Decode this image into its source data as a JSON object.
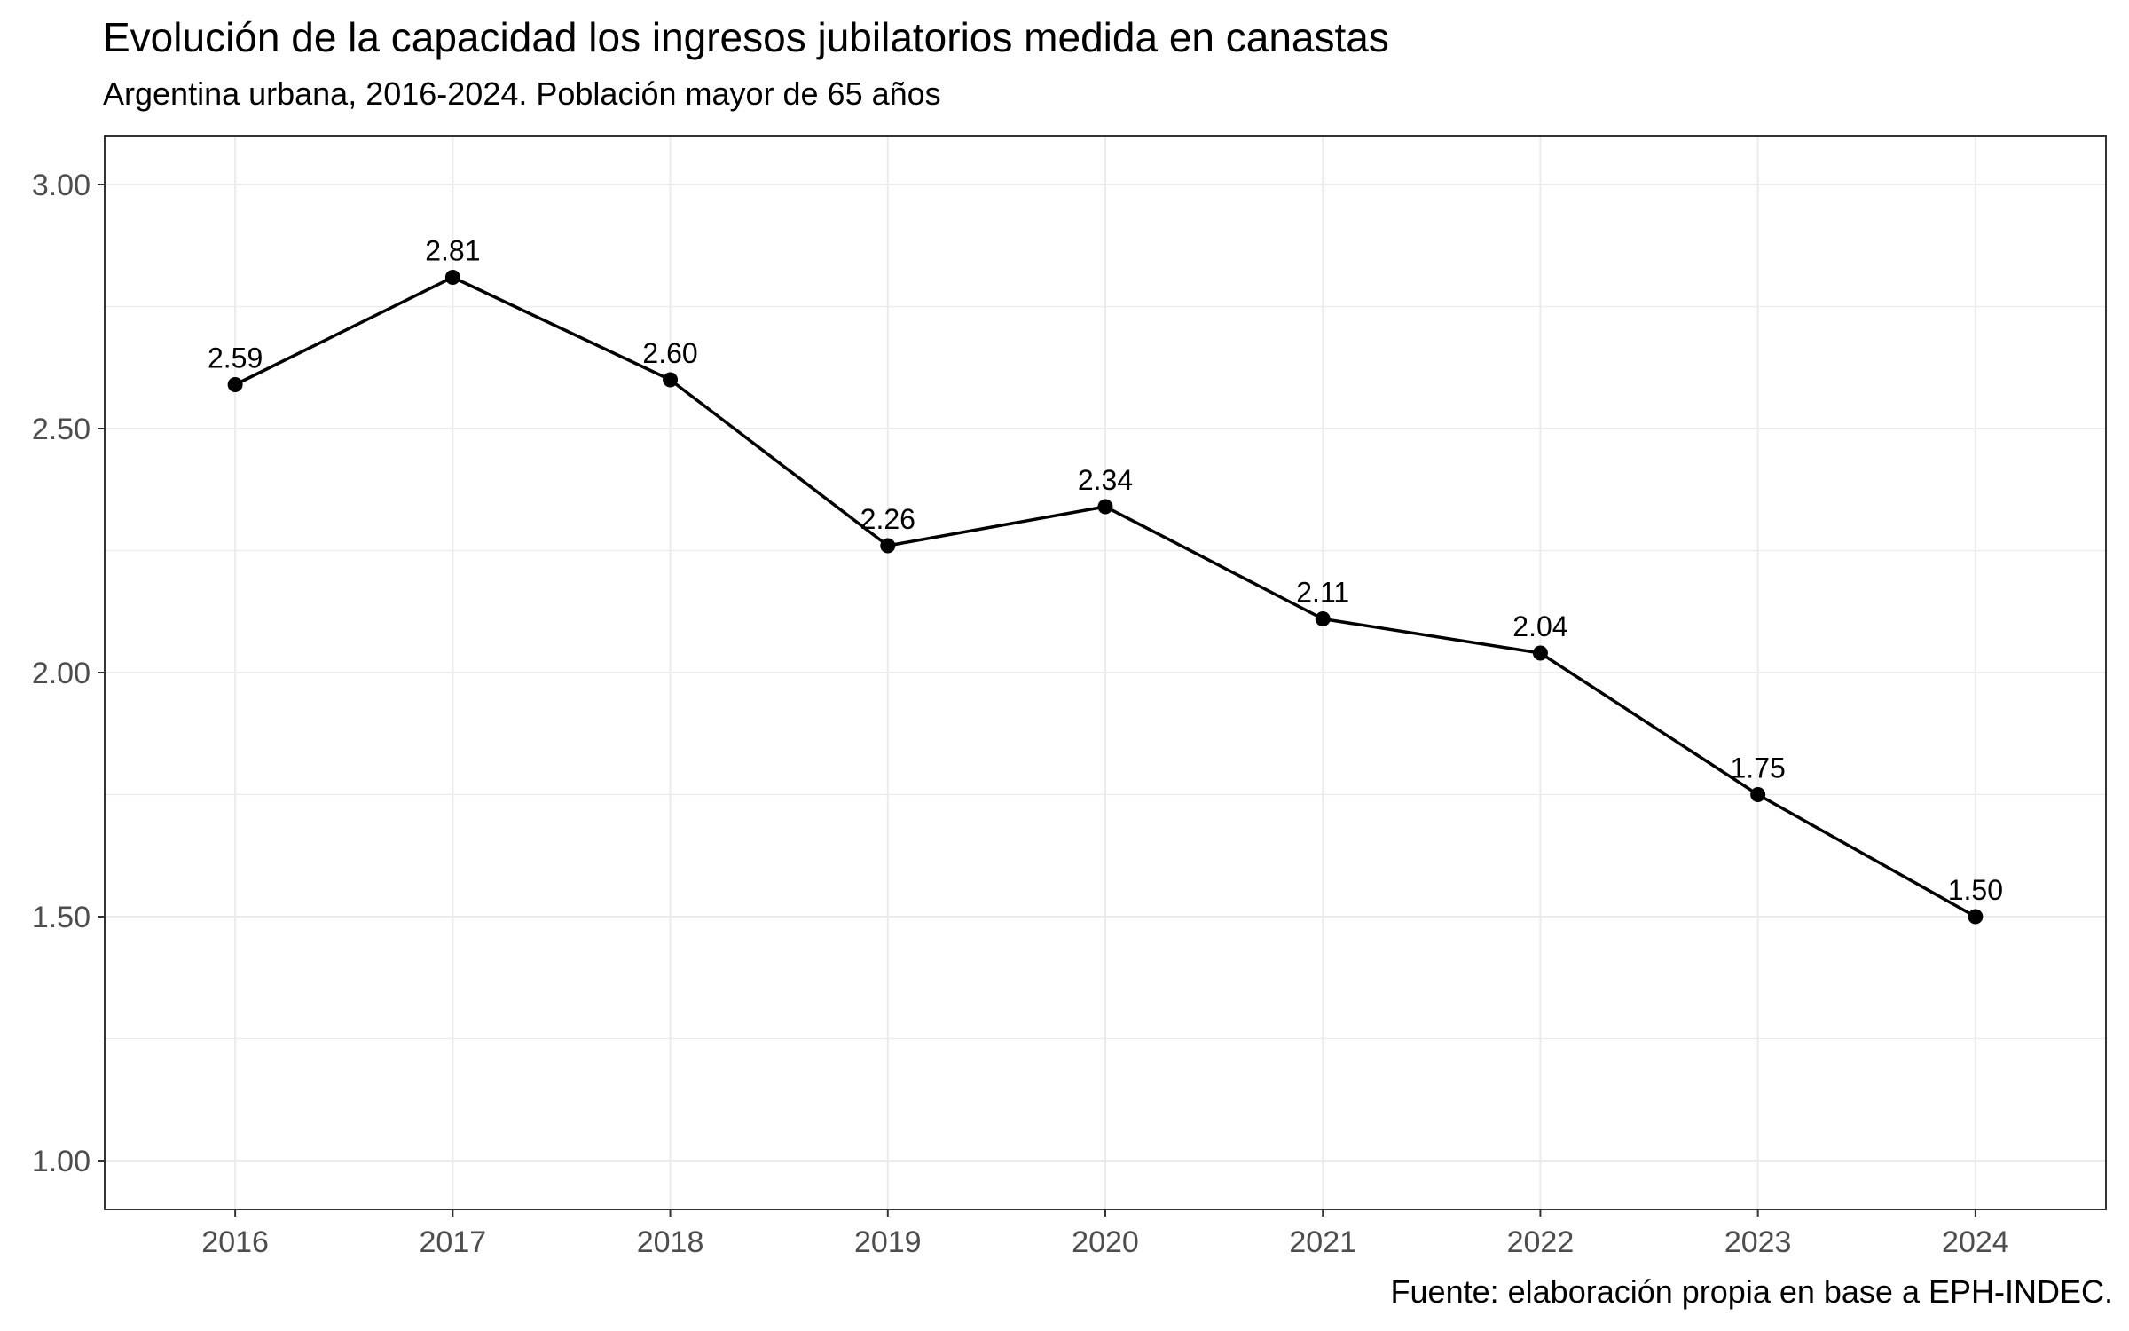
{
  "chart_data": {
    "type": "line",
    "title": "Evolución de la capacidad los ingresos jubilatorios medida en canastas",
    "subtitle": "Argentina urbana, 2016-2024. Población mayor de 65 años",
    "caption": "Fuente: elaboración propia en base a EPH-INDEC.",
    "xlabel": "",
    "ylabel": "",
    "x": [
      "2016",
      "2017",
      "2018",
      "2019",
      "2020",
      "2021",
      "2022",
      "2023",
      "2024"
    ],
    "y": [
      2.59,
      2.81,
      2.6,
      2.26,
      2.34,
      2.11,
      2.04,
      1.75,
      1.5
    ],
    "data_labels": [
      "2.59",
      "2.81",
      "2.60",
      "2.26",
      "2.34",
      "2.11",
      "2.04",
      "1.75",
      "1.50"
    ],
    "ylim": [
      0.9,
      3.1
    ],
    "yticks": [
      1.0,
      1.5,
      2.0,
      2.5,
      3.0
    ],
    "ytick_labels": [
      "1.00",
      "1.50",
      "2.00",
      "2.50",
      "3.00"
    ],
    "grid": true,
    "legend": "none",
    "colors": {
      "line": "#000000",
      "point": "#000000",
      "grid": "#ebebeb",
      "panel_border": "#333333",
      "tick_text": "#4d4d4d"
    }
  }
}
